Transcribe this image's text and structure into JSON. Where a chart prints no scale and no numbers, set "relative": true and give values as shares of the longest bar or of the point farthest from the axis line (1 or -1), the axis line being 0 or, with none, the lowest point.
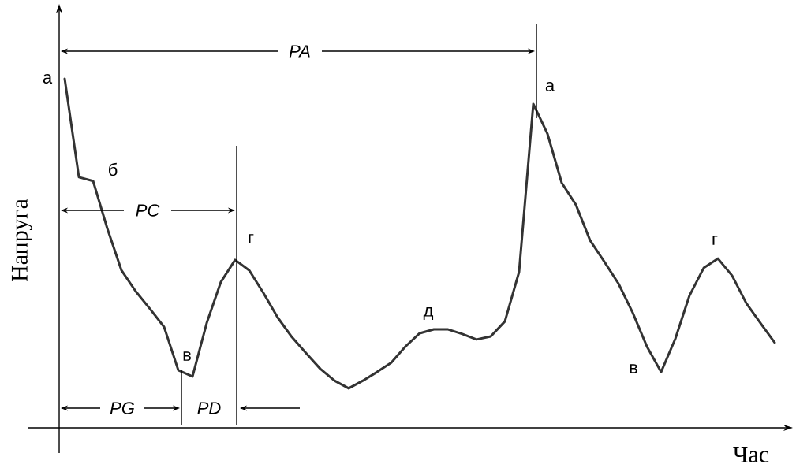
{
  "chart_data": {
    "type": "line",
    "relative": true,
    "xlabel": "Час",
    "ylabel": "Напруга",
    "color": "#333333",
    "categories": [
      null,
      null,
      null,
      null,
      null,
      null,
      null,
      null,
      null,
      null,
      null,
      null,
      null,
      null,
      null,
      null,
      null,
      null,
      null,
      null,
      null,
      null,
      null,
      null,
      null,
      null,
      null,
      null,
      null,
      null,
      null,
      null,
      null,
      null,
      null,
      null,
      null,
      null,
      null,
      null,
      null,
      null,
      null,
      null,
      null,
      null,
      null,
      null,
      null,
      null,
      null
    ],
    "values": [
      1.0,
      0.718,
      0.707,
      0.571,
      0.451,
      0.391,
      0.341,
      0.289,
      0.165,
      0.147,
      0.3,
      0.418,
      0.481,
      0.451,
      0.386,
      0.316,
      0.26,
      0.214,
      0.169,
      0.135,
      0.113,
      0.135,
      0.16,
      0.187,
      0.233,
      0.271,
      0.282,
      0.282,
      0.269,
      0.253,
      0.262,
      0.305,
      0.447,
      0.928,
      0.842,
      0.702,
      0.639,
      0.537,
      0.476,
      0.413,
      0.33,
      0.233,
      0.16,
      0.255,
      0.379,
      0.458,
      0.485,
      0.436,
      0.357,
      0.3,
      0.244
    ],
    "annotations": [
      "а",
      "б",
      "в",
      "г",
      "д",
      "а",
      "в",
      "г",
      "PA",
      "PC",
      "PG",
      "PD"
    ]
  }
}
